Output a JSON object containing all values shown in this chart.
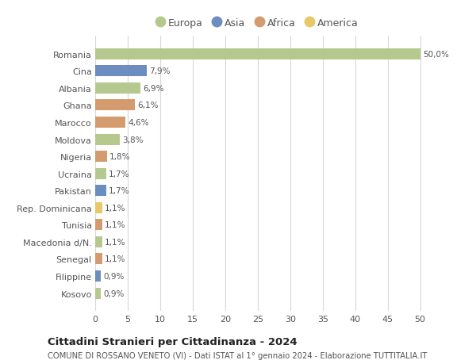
{
  "categories": [
    "Romania",
    "Cina",
    "Albania",
    "Ghana",
    "Marocco",
    "Moldova",
    "Nigeria",
    "Ucraina",
    "Pakistan",
    "Rep. Dominicana",
    "Tunisia",
    "Macedonia d/N.",
    "Senegal",
    "Filippine",
    "Kosovo"
  ],
  "values": [
    50.0,
    7.9,
    6.9,
    6.1,
    4.6,
    3.8,
    1.8,
    1.7,
    1.7,
    1.1,
    1.1,
    1.1,
    1.1,
    0.9,
    0.9
  ],
  "labels": [
    "50,0%",
    "7,9%",
    "6,9%",
    "6,1%",
    "4,6%",
    "3,8%",
    "1,8%",
    "1,7%",
    "1,7%",
    "1,1%",
    "1,1%",
    "1,1%",
    "1,1%",
    "0,9%",
    "0,9%"
  ],
  "continents": [
    "Europa",
    "Asia",
    "Europa",
    "Africa",
    "Africa",
    "Europa",
    "Africa",
    "Europa",
    "Asia",
    "America",
    "Africa",
    "Europa",
    "Africa",
    "Asia",
    "Europa"
  ],
  "colors": {
    "Europa": "#b5c98e",
    "Asia": "#6b8dbf",
    "Africa": "#d49b6e",
    "America": "#e8c96a"
  },
  "legend_order": [
    "Europa",
    "Asia",
    "Africa",
    "America"
  ],
  "title": "Cittadini Stranieri per Cittadinanza - 2024",
  "subtitle": "COMUNE DI ROSSANO VENETO (VI) - Dati ISTAT al 1° gennaio 2024 - Elaborazione TUTTITALIA.IT",
  "xlim": [
    0,
    52
  ],
  "xticks": [
    0,
    5,
    10,
    15,
    20,
    25,
    30,
    35,
    40,
    45,
    50
  ],
  "background_color": "#ffffff",
  "grid_color": "#d8d8d8",
  "bar_height": 0.65
}
